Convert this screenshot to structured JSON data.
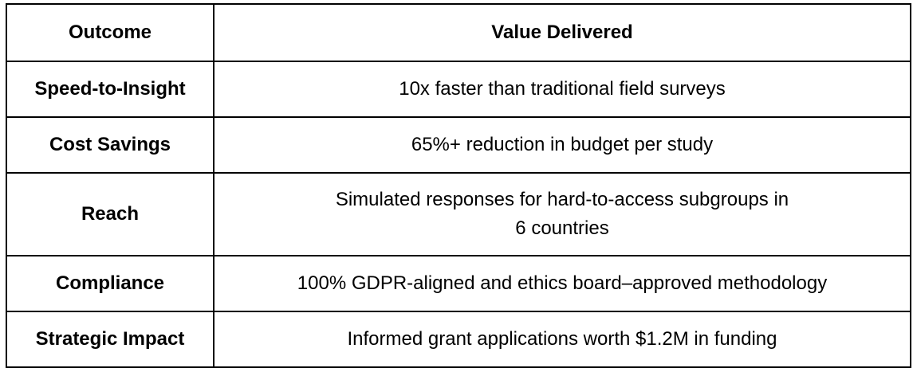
{
  "table": {
    "headers": [
      "Outcome",
      "Value Delivered"
    ],
    "rows": [
      {
        "outcome": "Speed-to-Insight",
        "value": "10x faster than traditional field surveys"
      },
      {
        "outcome": "Cost Savings",
        "value": "65%+ reduction in budget per study"
      },
      {
        "outcome": "Reach",
        "value": "Simulated responses for hard-to-access subgroups in 6 countries"
      },
      {
        "outcome": "Compliance",
        "value": "100% GDPR-aligned and ethics board–approved methodology"
      },
      {
        "outcome": "Strategic Impact",
        "value": "Informed grant applications worth $1.2M in funding"
      }
    ]
  }
}
